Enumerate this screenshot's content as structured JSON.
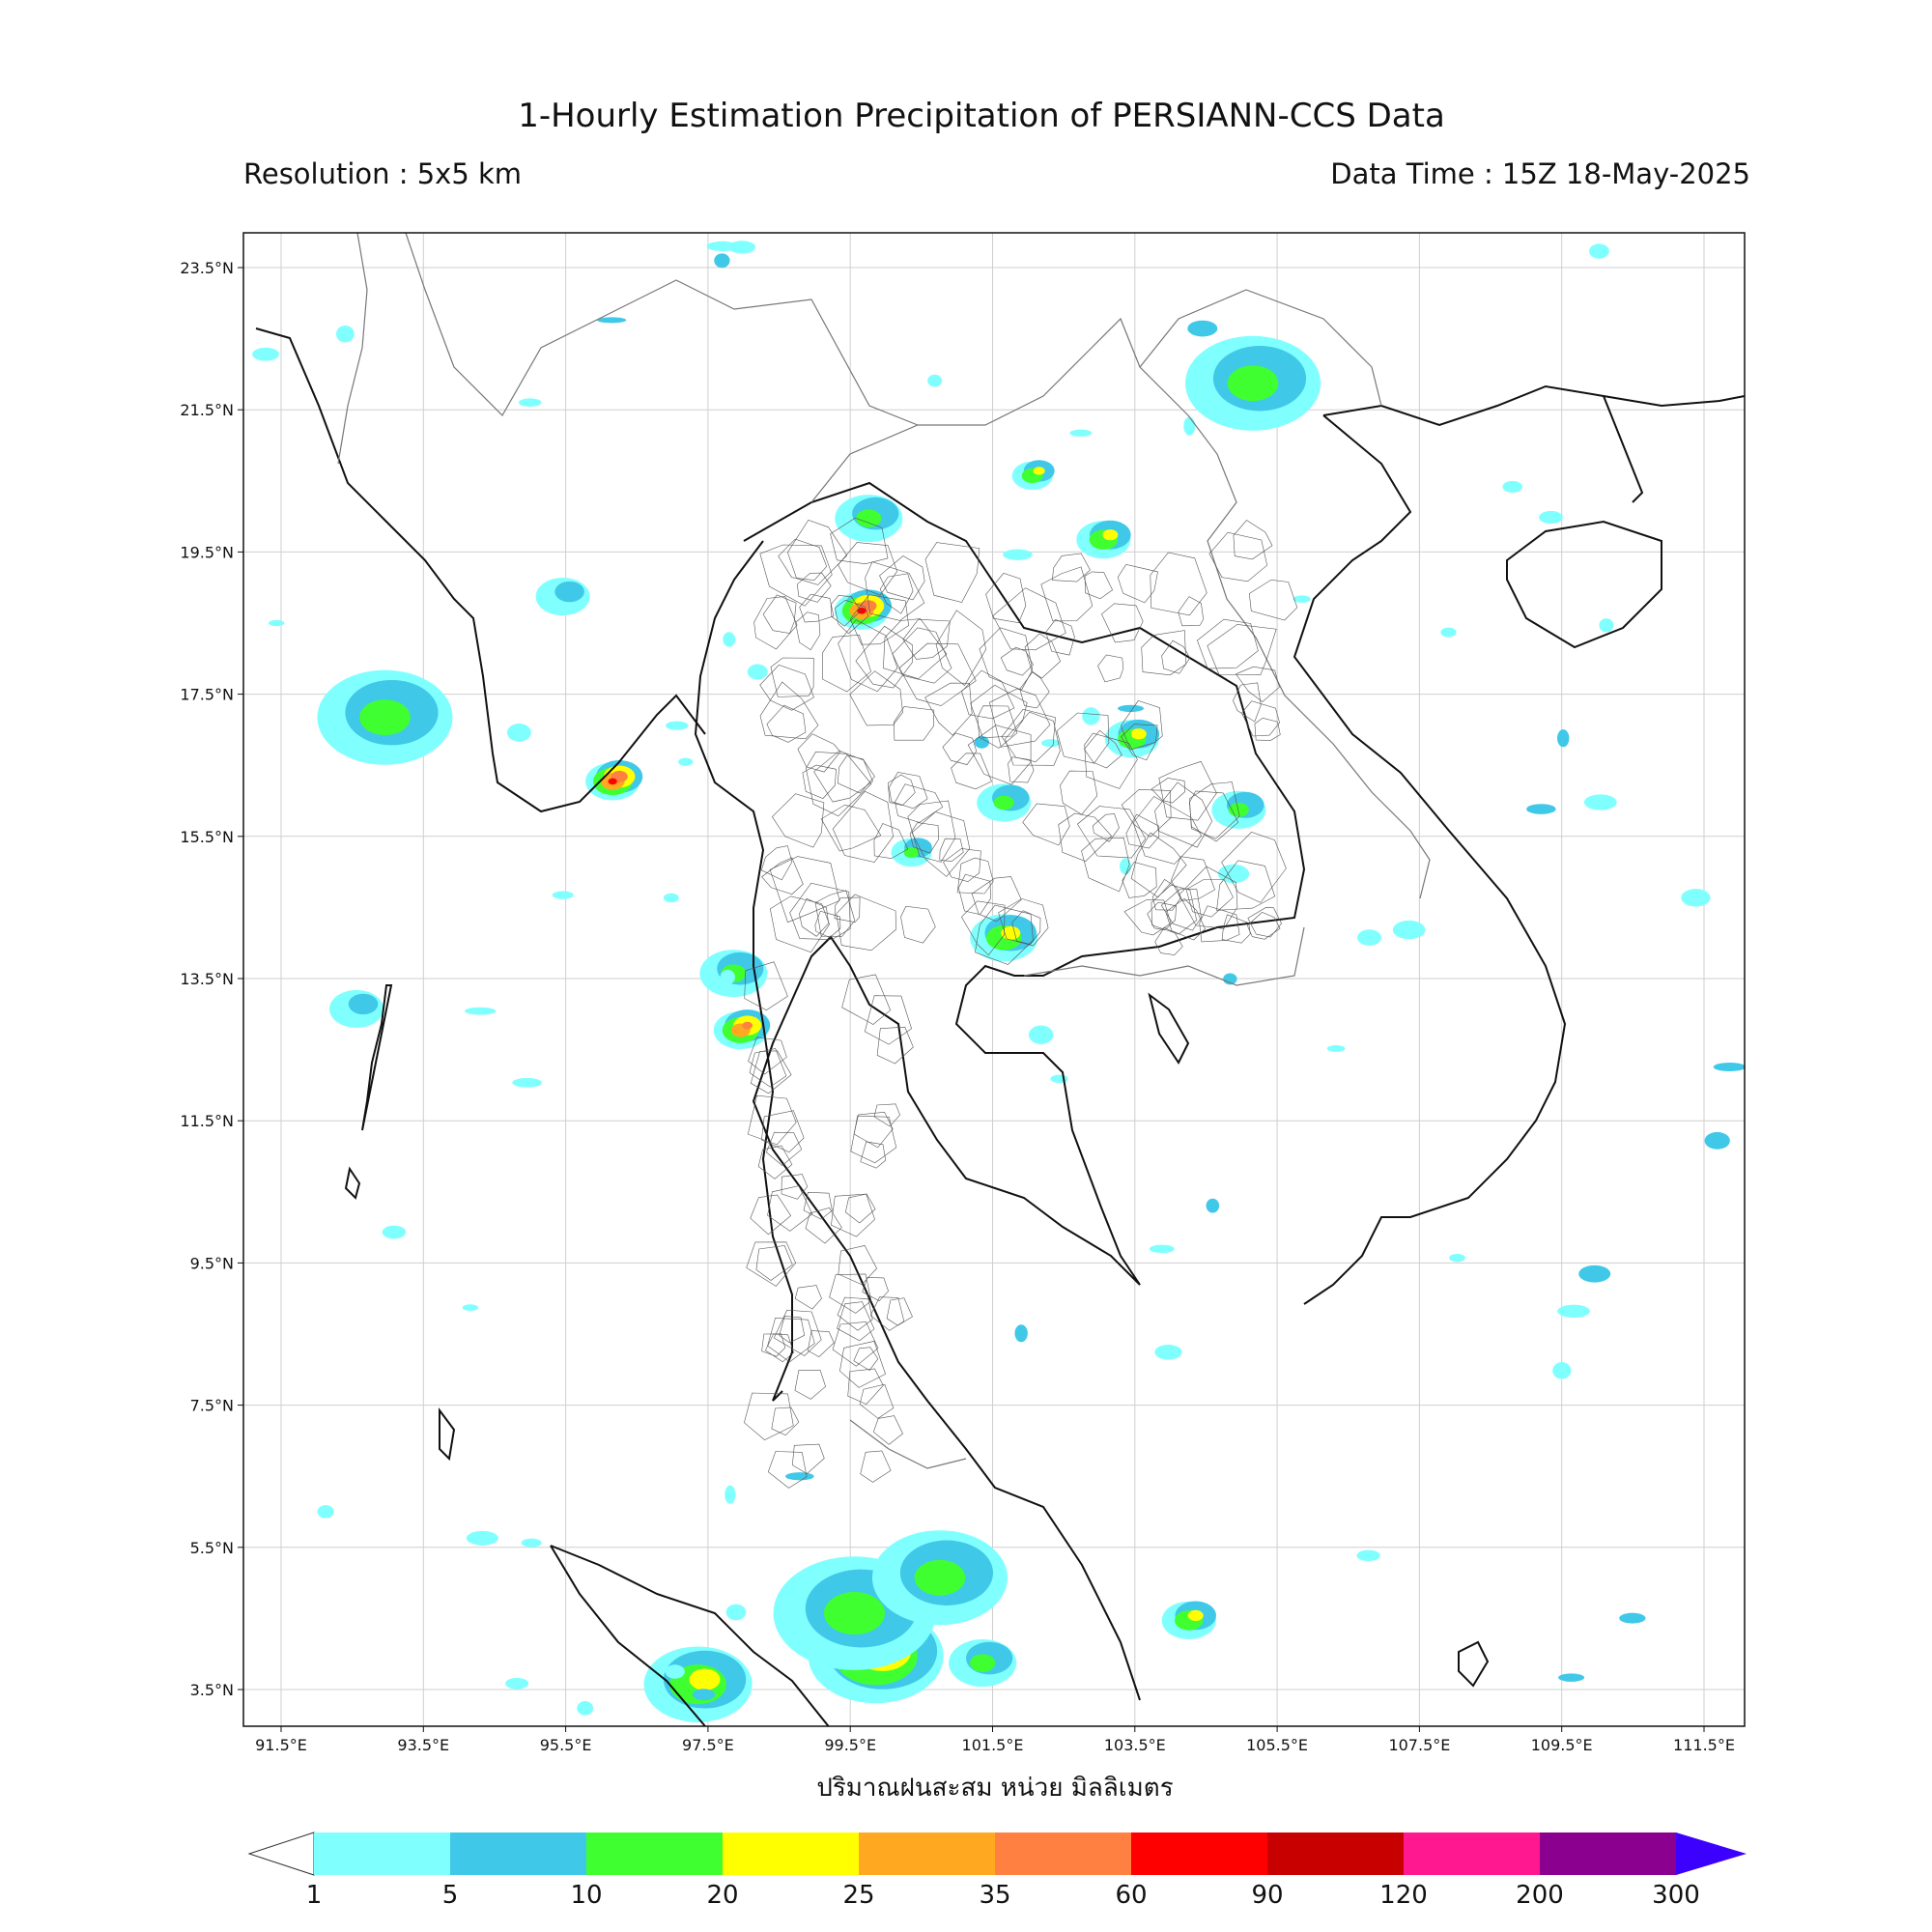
{
  "title": "1-Hourly Estimation Precipitation of PERSIANN-CCS Data",
  "resolution": "Resolution : 5x5 km",
  "data_time": "Data Time : 15Z 18-May-2025",
  "lat_labels": [
    "23.5°N",
    "21.5°N",
    "19.5°N",
    "17.5°N",
    "15.5°N",
    "13.5°N",
    "11.5°N",
    "9.5°N",
    "7.5°N",
    "5.5°N",
    "3.5°N"
  ],
  "lon_labels": [
    "91.5°E",
    "93.5°E",
    "95.5°E",
    "97.5°E",
    "99.5°E",
    "101.5°E",
    "103.5°E",
    "105.5°E",
    "107.5°E",
    "109.5°E",
    "111.5°E"
  ],
  "colorbar": {
    "label": "ปริมาณฝนสะสม หน่วย มิลลิเมตร",
    "ticks": [
      "1",
      "5",
      "10",
      "20",
      "25",
      "35",
      "60",
      "90",
      "120",
      "200",
      "300"
    ],
    "colors": [
      "#80ffff",
      "#40c8e8",
      "#40ff30",
      "#ffff00",
      "#ffa820",
      "#ff8040",
      "#ff0000",
      "#c80000",
      "#ff1890",
      "#8c0090"
    ],
    "under_color": "#ffffff",
    "over_color": "#3c00ff"
  },
  "rain_areas": [
    {
      "lon": 105.2,
      "lat": 21.9,
      "intensity": 2,
      "size": 1.0
    },
    {
      "lon": 93.0,
      "lat": 17.2,
      "intensity": 2,
      "size": 1.0
    },
    {
      "lon": 99.9,
      "lat": 4.0,
      "intensity": 4,
      "size": 1.0
    },
    {
      "lon": 99.6,
      "lat": 4.6,
      "intensity": 2,
      "size": 1.2
    },
    {
      "lon": 100.8,
      "lat": 5.1,
      "intensity": 2,
      "size": 1.0
    },
    {
      "lon": 97.4,
      "lat": 3.6,
      "intensity": 3,
      "size": 0.8
    },
    {
      "lon": 101.4,
      "lat": 3.9,
      "intensity": 2,
      "size": 0.5
    },
    {
      "lon": 96.2,
      "lat": 16.3,
      "intensity": 6,
      "size": 0.4
    },
    {
      "lon": 99.7,
      "lat": 18.7,
      "intensity": 6,
      "size": 0.4
    },
    {
      "lon": 99.8,
      "lat": 20.0,
      "intensity": 2,
      "size": 0.5
    },
    {
      "lon": 103.1,
      "lat": 19.7,
      "intensity": 3,
      "size": 0.4
    },
    {
      "lon": 102.1,
      "lat": 20.6,
      "intensity": 3,
      "size": 0.3
    },
    {
      "lon": 101.7,
      "lat": 14.1,
      "intensity": 3,
      "size": 0.5
    },
    {
      "lon": 98.0,
      "lat": 12.8,
      "intensity": 5,
      "size": 0.4
    },
    {
      "lon": 97.9,
      "lat": 13.6,
      "intensity": 2,
      "size": 0.5
    },
    {
      "lon": 103.5,
      "lat": 16.9,
      "intensity": 3,
      "size": 0.4
    },
    {
      "lon": 105.0,
      "lat": 15.9,
      "intensity": 2,
      "size": 0.4
    },
    {
      "lon": 104.3,
      "lat": 4.5,
      "intensity": 3,
      "size": 0.4
    },
    {
      "lon": 95.5,
      "lat": 18.9,
      "intensity": 1,
      "size": 0.4
    },
    {
      "lon": 101.7,
      "lat": 16.0,
      "intensity": 2,
      "size": 0.4
    },
    {
      "lon": 100.4,
      "lat": 15.3,
      "intensity": 2,
      "size": 0.3
    },
    {
      "lon": 92.6,
      "lat": 13.1,
      "intensity": 1,
      "size": 0.4
    }
  ]
}
